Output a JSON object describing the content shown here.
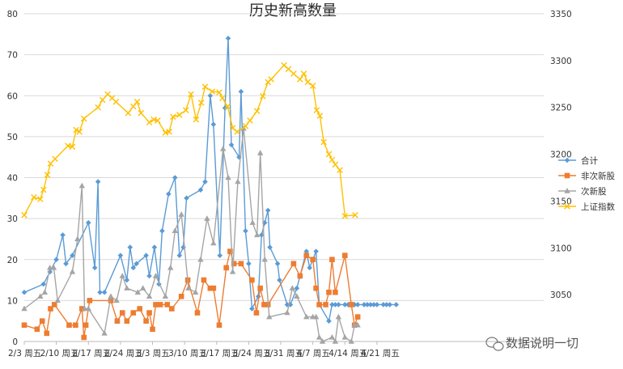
{
  "chart_data": {
    "type": "line",
    "title": "历史新高数量",
    "x_labels": [
      "2/3 周五",
      "2/10 周五",
      "2/17 周五",
      "2/24 周五",
      "3/3 周五",
      "3/10 周五",
      "3/17 周五",
      "3/24 周五",
      "3/31 周五",
      "4/7 周五",
      "4/14 周五",
      "4/21 周五"
    ],
    "x_range": [
      0,
      81
    ],
    "y_left": {
      "min": 0,
      "max": 80,
      "step": 10,
      "ticks": [
        "0",
        "10",
        "20",
        "30",
        "40",
        "50",
        "60",
        "70",
        "80"
      ]
    },
    "y_right": {
      "min": 3000,
      "max": 3350,
      "step": 50,
      "ticks": [
        "3050",
        "3100",
        "3150",
        "3200",
        "3250",
        "3300",
        "3350"
      ]
    },
    "grid": true,
    "legend_position": "right",
    "series": [
      {
        "name": "合计",
        "axis": "left",
        "color": "#5B9BD5",
        "marker": "diamond",
        "x": [
          0,
          3,
          4,
          5,
          6,
          6.5,
          7.5,
          10,
          11,
          11.5,
          11.8,
          12.5,
          15,
          16,
          16.5,
          17,
          17.5,
          19,
          19.5,
          20.3,
          21,
          21.5,
          22.5,
          23.5,
          24.2,
          24.8,
          25.3,
          27.5,
          28.2,
          29,
          29.5,
          30.5,
          31.3,
          31.8,
          32.3,
          33.5,
          33.8,
          34.5,
          35,
          35.5,
          36.5,
          37,
          37.5,
          38,
          38.3,
          39.5,
          39.8,
          41,
          41.5,
          42.5,
          44,
          44.5,
          45.5,
          46,
          47.5,
          48,
          48.5,
          49,
          50,
          50.5,
          51,
          51.5,
          52,
          53,
          53.5,
          54,
          54.5,
          55,
          56,
          56.5,
          57,
          58
        ],
        "y": [
          12,
          14,
          17,
          20,
          26,
          19,
          21,
          29,
          18,
          39,
          12,
          12,
          21,
          15,
          23,
          18,
          19,
          21,
          16,
          23,
          14,
          27,
          36,
          40,
          21,
          23,
          35,
          37,
          39,
          60,
          53,
          21,
          57,
          74,
          48,
          45,
          61,
          27,
          19,
          8,
          11,
          26,
          29,
          32,
          23,
          19,
          15,
          9,
          9,
          13,
          22,
          18,
          22,
          9,
          5,
          9,
          9,
          9,
          9,
          9,
          9,
          9,
          9,
          9,
          9,
          9,
          9,
          9,
          9,
          9,
          9,
          9
        ]
      },
      {
        "name": "非次新股",
        "axis": "left",
        "color": "#ED7D31",
        "marker": "square",
        "x": [
          0,
          2,
          2.8,
          3.5,
          4.1,
          4.7,
          7,
          8,
          9,
          9.3,
          9.6,
          10.2,
          13.5,
          14.5,
          15.3,
          16,
          17,
          18,
          19,
          19.5,
          20,
          20.5,
          21.2,
          22.3,
          23,
          24.5,
          25.5,
          27,
          28,
          29,
          29.5,
          30.4,
          31.5,
          32.1,
          32.7,
          33.8,
          35.5,
          36.2,
          36.8,
          37.4,
          38,
          42,
          43,
          44,
          45,
          45.5,
          46,
          47,
          47.5,
          48,
          48.5,
          50,
          51,
          51.5,
          52
        ],
        "y": [
          4,
          3,
          5,
          2,
          8,
          9,
          4,
          4,
          8,
          1,
          4,
          10,
          10,
          5,
          7,
          5,
          7,
          8,
          5,
          7,
          3,
          9,
          9,
          9,
          8,
          11,
          15,
          7,
          15,
          13,
          13,
          4,
          18,
          22,
          19,
          19,
          15,
          7,
          13,
          9,
          9,
          19,
          16,
          21,
          20,
          13,
          9,
          9,
          12,
          20,
          12,
          21,
          9,
          4,
          6
        ]
      },
      {
        "name": "次新股",
        "axis": "left",
        "color": "#A5A5A5",
        "marker": "triangle",
        "x": [
          0,
          2.5,
          3.2,
          4,
          4.6,
          5.2,
          7.5,
          8.3,
          9,
          9.4,
          10,
          12.5,
          13.5,
          14.4,
          15.3,
          16,
          17.7,
          18.5,
          19.5,
          20.5,
          22,
          22.8,
          23.5,
          24.5,
          25.6,
          26.7,
          27.5,
          28.5,
          29.5,
          31,
          31.8,
          32.5,
          33.3,
          34.2,
          35.6,
          36.3,
          36.8,
          37.5,
          38.2,
          41,
          41.8,
          42.5,
          44,
          45,
          45.5,
          46,
          46.5,
          48,
          48.5,
          49,
          50,
          51,
          51.5,
          52
        ],
        "y": [
          8,
          11,
          12,
          18,
          18,
          10,
          17,
          25,
          38,
          8,
          8,
          2,
          11,
          10,
          16,
          13,
          12,
          13,
          11,
          16,
          11,
          18,
          27,
          31,
          13,
          12,
          20,
          30,
          24,
          47,
          40,
          17,
          39,
          52,
          29,
          26,
          46,
          20,
          6,
          7,
          13,
          11,
          6,
          6,
          6,
          1,
          0,
          1,
          0,
          6,
          1,
          0,
          4,
          4
        ]
      },
      {
        "name": "上证指数",
        "axis": "right",
        "color": "#FFC000",
        "marker": "x",
        "x": [
          0,
          1.5,
          2.5,
          3,
          3.6,
          4.1,
          4.8,
          6.8,
          7.5,
          8.1,
          8.6,
          9.3,
          11.5,
          12.2,
          13,
          13.7,
          14.3,
          16.2,
          17,
          17.6,
          18.2,
          19.5,
          20.2,
          20.8,
          22,
          22.6,
          23.2,
          24.2,
          25.2,
          26,
          26.8,
          27.6,
          28.2,
          29.3,
          30.4,
          30.9,
          31.7,
          32.5,
          33.2,
          34.5,
          35.2,
          36.3,
          37.2,
          38,
          38.5,
          40.5,
          41.2,
          42,
          43,
          43.6,
          44.2,
          45,
          45.6,
          46.1,
          46.7,
          47.5,
          48,
          48.5,
          49.2,
          50,
          51.6
        ],
        "y": [
          3135,
          3154,
          3152,
          3162,
          3178,
          3190,
          3195,
          3209,
          3208,
          3226,
          3224,
          3238,
          3250,
          3258,
          3264,
          3260,
          3256,
          3244,
          3251,
          3256,
          3244,
          3234,
          3237,
          3236,
          3223,
          3224,
          3240,
          3242,
          3247,
          3264,
          3237,
          3255,
          3272,
          3267,
          3266,
          3260,
          3251,
          3228,
          3224,
          3230,
          3236,
          3246,
          3262,
          3277,
          3280,
          3295,
          3291,
          3286,
          3280,
          3286,
          3277,
          3273,
          3247,
          3241,
          3213,
          3200,
          3194,
          3189,
          3183,
          3134,
          3135
        ]
      }
    ]
  },
  "watermark": {
    "text": "数据说明一切"
  }
}
